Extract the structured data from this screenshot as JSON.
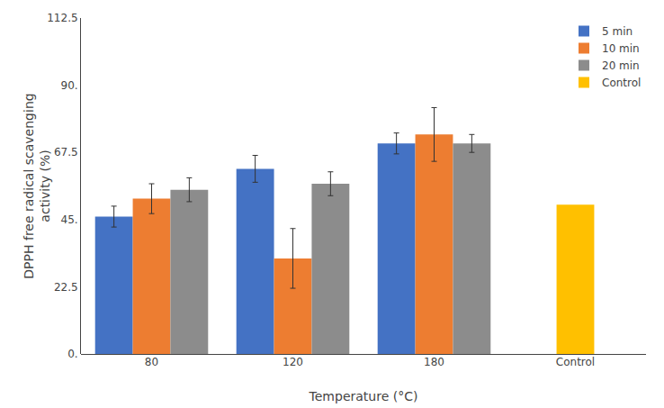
{
  "chart_data": {
    "type": "bar",
    "xlabel": "Temperature (°C)",
    "ylabel": "DPPH free radical scavenging\nactivity (%)",
    "categories": [
      "80",
      "120",
      "180",
      "Control"
    ],
    "series": [
      {
        "name": "5 min",
        "color": "#4472C4",
        "values": [
          46.0,
          62.0,
          70.5,
          null
        ],
        "errors": [
          3.5,
          4.5,
          3.5,
          null
        ]
      },
      {
        "name": "10 min",
        "color": "#ED7D31",
        "values": [
          52.0,
          32.0,
          73.5,
          null
        ],
        "errors": [
          5.0,
          10.0,
          9.0,
          null
        ]
      },
      {
        "name": "20 min",
        "color": "#8C8C8C",
        "values": [
          55.0,
          57.0,
          70.5,
          null
        ],
        "errors": [
          4.0,
          4.0,
          3.0,
          null
        ]
      },
      {
        "name": "Control",
        "color": "#FFC000",
        "values": [
          null,
          null,
          null,
          50.0
        ]
      }
    ],
    "ylim": [
      0,
      112.5
    ],
    "yticks": [
      {
        "value": 0,
        "label": "0."
      },
      22.5,
      {
        "value": 45.0,
        "label": "45."
      },
      67.5,
      {
        "value": 90.0,
        "label": "90."
      },
      112.5
    ],
    "grid": false,
    "legend": "upper right"
  }
}
